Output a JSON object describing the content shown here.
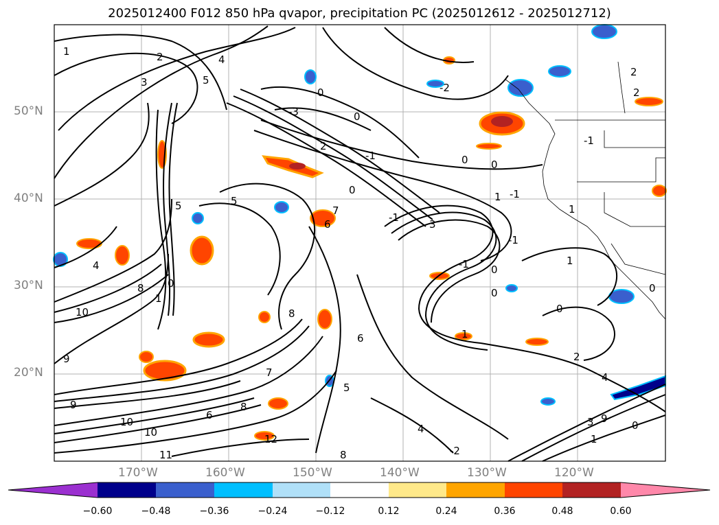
{
  "title": "2025012400 F012 850 hPa qvapor, precipitation PC (2025012612 - 2025012712)",
  "lat_labels": [
    "50°N",
    "40°N",
    "30°N",
    "20°N"
  ],
  "lon_labels": [
    "170°W",
    "160°W",
    "150°W",
    "140°W",
    "130°W",
    "120°W"
  ],
  "colorbar": {
    "ticks": [
      "−0.60",
      "−0.48",
      "−0.36",
      "−0.24",
      "−0.12",
      "0.12",
      "0.24",
      "0.36",
      "0.48",
      "0.60"
    ],
    "colors": [
      "#9b30d0",
      "#00008b",
      "#3a5fcd",
      "#00bfff",
      "#b0e0f8",
      "#ffffff",
      "#ffe98a",
      "#ffa500",
      "#ff4500",
      "#b22222",
      "#ff88aa"
    ]
  },
  "contour_labels": [
    "1",
    "2",
    "3",
    "4",
    "5",
    "0",
    "2",
    "-3",
    "0",
    "2",
    "0",
    "0",
    "-2",
    "-1",
    "1",
    "5",
    "0",
    "5",
    "6",
    "7",
    "-1",
    "3",
    "0",
    "-1",
    "0",
    "1",
    "-1",
    "0",
    "1",
    "4",
    "10",
    "9",
    "8",
    "6",
    "8",
    "9",
    "10",
    "10",
    "11",
    "8",
    "12",
    "4",
    "6",
    "5",
    "7",
    "8",
    "2",
    "9",
    "4",
    "1",
    "-2",
    "-1",
    "1",
    "0",
    "-1",
    "2",
    "0",
    "3",
    "0",
    "1"
  ]
}
